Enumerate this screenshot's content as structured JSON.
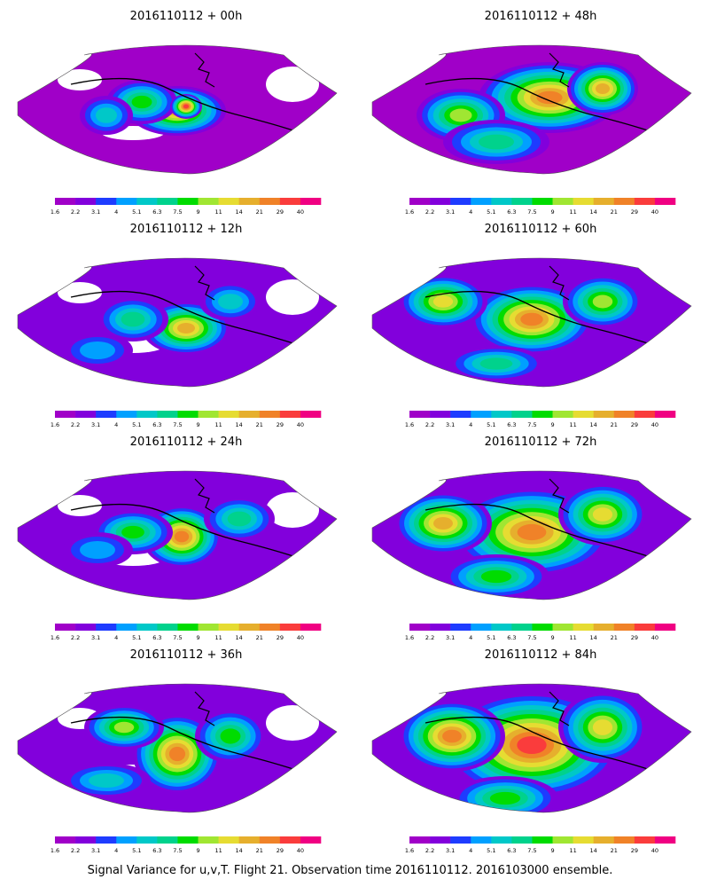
{
  "caption": "Signal Variance for u,v,T. Flight 21. Observation time 2016110112. 2016103000 ensemble.",
  "colorbar": {
    "labels": [
      "1.6",
      "2.2",
      "3.1",
      "4",
      "5.1",
      "6.3",
      "7.5",
      "9",
      "11",
      "14",
      "21",
      "29",
      "40"
    ],
    "colors": [
      "#a000c8",
      "#8200dc",
      "#1e3cff",
      "#00a0ff",
      "#00c8c8",
      "#00d28c",
      "#00dc00",
      "#a0e632",
      "#e6dc32",
      "#e6af2d",
      "#f08228",
      "#fa3c3c",
      "#f00082"
    ]
  },
  "chart_data": [
    {
      "type": "heatmap",
      "title": "2016110112 + 00h"
    },
    {
      "type": "heatmap",
      "title": "2016110112 + 48h"
    },
    {
      "type": "heatmap",
      "title": "2016110112 + 12h"
    },
    {
      "type": "heatmap",
      "title": "2016110112 + 60h"
    },
    {
      "type": "heatmap",
      "title": "2016110112 + 24h"
    },
    {
      "type": "heatmap",
      "title": "2016110112 + 72h"
    },
    {
      "type": "heatmap",
      "title": "2016110112 + 36h"
    },
    {
      "type": "heatmap",
      "title": "2016110112 + 84h"
    }
  ]
}
